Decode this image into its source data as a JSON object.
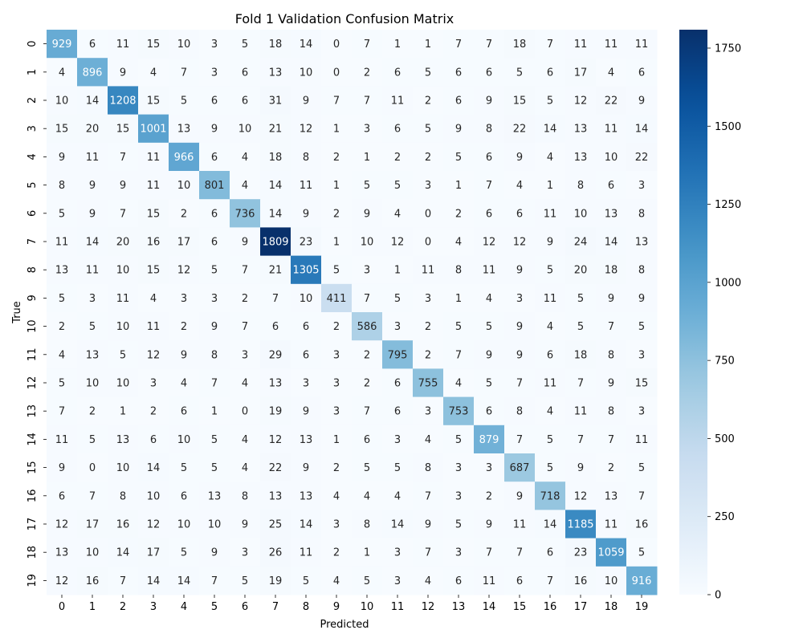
{
  "chart_data": {
    "type": "heatmap",
    "title": "Fold 1 Validation Confusion Matrix",
    "xlabel": "Predicted",
    "ylabel": "True",
    "x_categories": [
      "0",
      "1",
      "2",
      "3",
      "4",
      "5",
      "6",
      "7",
      "8",
      "9",
      "10",
      "11",
      "12",
      "13",
      "14",
      "15",
      "16",
      "17",
      "18",
      "19"
    ],
    "y_categories": [
      "0",
      "1",
      "2",
      "3",
      "4",
      "5",
      "6",
      "7",
      "8",
      "9",
      "10",
      "11",
      "12",
      "13",
      "14",
      "15",
      "16",
      "17",
      "18",
      "19"
    ],
    "matrix": [
      [
        929,
        6,
        11,
        15,
        10,
        3,
        5,
        18,
        14,
        0,
        7,
        1,
        1,
        7,
        7,
        18,
        7,
        11,
        11,
        11
      ],
      [
        4,
        896,
        9,
        4,
        7,
        3,
        6,
        13,
        10,
        0,
        2,
        6,
        5,
        6,
        6,
        5,
        6,
        17,
        4,
        6
      ],
      [
        10,
        14,
        1208,
        15,
        5,
        6,
        6,
        31,
        9,
        7,
        7,
        11,
        2,
        6,
        9,
        15,
        5,
        12,
        22,
        9
      ],
      [
        15,
        20,
        15,
        1001,
        13,
        9,
        10,
        21,
        12,
        1,
        3,
        6,
        5,
        9,
        8,
        22,
        14,
        13,
        11,
        14
      ],
      [
        9,
        11,
        7,
        11,
        966,
        6,
        4,
        18,
        8,
        2,
        1,
        2,
        2,
        5,
        6,
        9,
        4,
        13,
        10,
        22
      ],
      [
        8,
        9,
        9,
        11,
        10,
        801,
        4,
        14,
        11,
        1,
        5,
        5,
        3,
        1,
        7,
        4,
        1,
        8,
        6,
        3
      ],
      [
        5,
        9,
        7,
        15,
        2,
        6,
        736,
        14,
        9,
        2,
        9,
        4,
        0,
        2,
        6,
        6,
        11,
        10,
        13,
        8
      ],
      [
        11,
        14,
        20,
        16,
        17,
        6,
        9,
        1809,
        23,
        1,
        10,
        12,
        0,
        4,
        12,
        12,
        9,
        24,
        14,
        13
      ],
      [
        13,
        11,
        10,
        15,
        12,
        5,
        7,
        21,
        1305,
        5,
        3,
        1,
        11,
        8,
        11,
        9,
        5,
        20,
        18,
        8
      ],
      [
        5,
        3,
        11,
        4,
        3,
        3,
        2,
        7,
        10,
        411,
        7,
        5,
        3,
        1,
        4,
        3,
        11,
        5,
        9,
        9
      ],
      [
        2,
        5,
        10,
        11,
        2,
        9,
        7,
        6,
        6,
        2,
        586,
        3,
        2,
        5,
        5,
        9,
        4,
        5,
        7,
        5
      ],
      [
        4,
        13,
        5,
        12,
        9,
        8,
        3,
        29,
        6,
        3,
        2,
        795,
        2,
        7,
        9,
        9,
        6,
        18,
        8,
        3
      ],
      [
        5,
        10,
        10,
        3,
        4,
        7,
        4,
        13,
        3,
        3,
        2,
        6,
        755,
        4,
        5,
        7,
        11,
        7,
        9,
        15
      ],
      [
        7,
        2,
        1,
        2,
        6,
        1,
        0,
        19,
        9,
        3,
        7,
        6,
        3,
        753,
        6,
        8,
        4,
        11,
        8,
        3
      ],
      [
        11,
        5,
        13,
        6,
        10,
        5,
        4,
        12,
        13,
        1,
        6,
        3,
        4,
        5,
        879,
        7,
        5,
        7,
        7,
        11
      ],
      [
        9,
        0,
        10,
        14,
        5,
        5,
        4,
        22,
        9,
        2,
        5,
        5,
        8,
        3,
        3,
        687,
        5,
        9,
        2,
        5
      ],
      [
        6,
        7,
        8,
        10,
        6,
        13,
        8,
        13,
        13,
        4,
        4,
        4,
        7,
        3,
        2,
        9,
        718,
        12,
        13,
        7
      ],
      [
        12,
        17,
        16,
        12,
        10,
        10,
        9,
        25,
        14,
        3,
        8,
        14,
        9,
        5,
        9,
        11,
        14,
        1185,
        11,
        16
      ],
      [
        13,
        10,
        14,
        17,
        5,
        9,
        3,
        26,
        11,
        2,
        1,
        3,
        7,
        3,
        7,
        7,
        6,
        23,
        1059,
        5
      ],
      [
        12,
        16,
        7,
        14,
        14,
        7,
        5,
        19,
        5,
        4,
        5,
        3,
        4,
        6,
        11,
        6,
        7,
        16,
        10,
        916
      ]
    ],
    "colorbar": {
      "colormap": "Blues",
      "vmin": 0,
      "vmax": 1809,
      "ticks": [
        0,
        250,
        500,
        750,
        1000,
        1250,
        1500,
        1750
      ]
    },
    "grid": false,
    "colors": {
      "low": "#f7fbff",
      "high": "#08306b",
      "text_dark": "#262626",
      "text_light": "#ffffff"
    }
  }
}
